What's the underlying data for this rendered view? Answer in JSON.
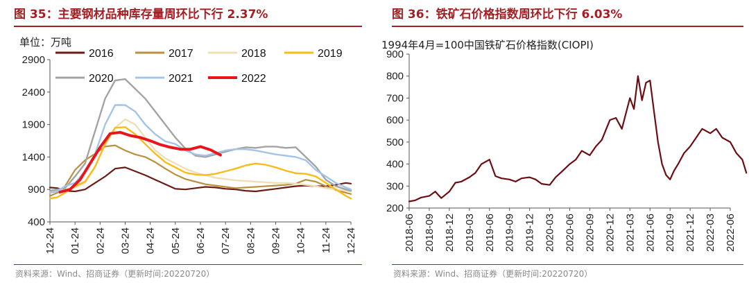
{
  "left": {
    "title": "图 35：主要钢材品种库存量周环比下行 2.37%",
    "source": "资料来源：Wind、招商证券（更新时间:20220720）",
    "chart_data": {
      "type": "line",
      "unit_label": "单位：万吨",
      "ylim": [
        400,
        2900
      ],
      "yticks": [
        400,
        900,
        1400,
        1900,
        2400,
        2900
      ],
      "x_ticks": [
        "12-24",
        "01-24",
        "02-24",
        "03-24",
        "04-24",
        "05-24",
        "06-24",
        "07-24",
        "08-24",
        "09-24",
        "10-24",
        "11-24",
        "12-24"
      ],
      "series": [
        {
          "name": "2016",
          "color": "#6b1a14",
          "width": 2.2,
          "x": [
            0,
            0.3,
            0.6,
            1,
            1.4,
            1.8,
            2.2,
            2.6,
            3,
            3.4,
            3.8,
            4.2,
            4.6,
            5,
            5.4,
            5.8,
            6.2,
            6.6,
            7,
            7.4,
            7.8,
            8.2,
            8.6,
            9,
            9.4,
            9.8,
            10.2,
            10.6,
            11,
            11.4,
            11.8,
            12
          ],
          "values": [
            930,
            920,
            880,
            870,
            900,
            1000,
            1100,
            1220,
            1240,
            1180,
            1120,
            1050,
            980,
            910,
            900,
            920,
            940,
            930,
            910,
            900,
            880,
            870,
            890,
            910,
            930,
            950,
            960,
            950,
            950,
            970,
            1000,
            990
          ]
        },
        {
          "name": "2017",
          "color": "#b8913e",
          "width": 2.2,
          "x": [
            0,
            0.3,
            0.6,
            1,
            1.4,
            1.8,
            2.2,
            2.6,
            3,
            3.4,
            3.8,
            4.2,
            4.6,
            5,
            5.4,
            5.8,
            6.2,
            6.6,
            7,
            7.4,
            7.8,
            8.2,
            8.6,
            9,
            9.4,
            9.8,
            10.2,
            10.6,
            11,
            11.4,
            11.8,
            12
          ],
          "values": [
            800,
            850,
            950,
            1200,
            1350,
            1450,
            1560,
            1580,
            1500,
            1440,
            1400,
            1320,
            1220,
            1130,
            1060,
            1020,
            980,
            960,
            940,
            920,
            930,
            940,
            950,
            960,
            970,
            990,
            1050,
            1020,
            950,
            890,
            850,
            830
          ]
        },
        {
          "name": "2018",
          "color": "#efdfb6",
          "width": 2.4,
          "x": [
            0,
            0.3,
            0.6,
            1,
            1.4,
            1.8,
            2.2,
            2.6,
            3,
            3.4,
            3.8,
            4.2,
            4.6,
            5,
            5.4,
            5.8,
            6.2,
            6.6,
            7,
            7.4,
            7.8,
            8.2,
            8.6,
            9,
            9.4,
            9.8,
            10.2,
            10.6,
            11,
            11.4,
            11.8,
            12
          ],
          "values": [
            860,
            880,
            900,
            930,
            1000,
            1250,
            1600,
            1850,
            1980,
            1900,
            1700,
            1500,
            1380,
            1300,
            1220,
            1160,
            1120,
            1080,
            1060,
            1040,
            1030,
            1020,
            1010,
            1000,
            1000,
            990,
            970,
            950,
            920,
            900,
            880,
            870
          ]
        },
        {
          "name": "2019",
          "color": "#f9bb17",
          "width": 2.4,
          "x": [
            0,
            0.3,
            0.6,
            1,
            1.4,
            1.8,
            2.2,
            2.6,
            3,
            3.4,
            3.8,
            4.2,
            4.6,
            5,
            5.4,
            5.8,
            6.2,
            6.6,
            7,
            7.4,
            7.8,
            8.2,
            8.6,
            9,
            9.4,
            9.8,
            10.2,
            10.6,
            11,
            11.4,
            11.8,
            12
          ],
          "values": [
            760,
            780,
            850,
            950,
            1020,
            1250,
            1600,
            1850,
            1860,
            1750,
            1600,
            1450,
            1320,
            1240,
            1160,
            1130,
            1120,
            1140,
            1180,
            1220,
            1270,
            1300,
            1280,
            1240,
            1190,
            1150,
            1140,
            1100,
            1000,
            900,
            800,
            760
          ]
        },
        {
          "name": "2020",
          "color": "#a3a3a3",
          "width": 2.4,
          "x": [
            0,
            0.3,
            0.6,
            1,
            1.4,
            1.8,
            2.2,
            2.6,
            3,
            3.4,
            3.8,
            4.2,
            4.6,
            5,
            5.4,
            5.8,
            6.2,
            6.6,
            7,
            7.4,
            7.8,
            8.2,
            8.6,
            9,
            9.4,
            9.8,
            10.2,
            10.6,
            11,
            11.4,
            11.8,
            12
          ],
          "values": [
            880,
            900,
            920,
            1100,
            1300,
            1800,
            2300,
            2580,
            2600,
            2450,
            2300,
            2100,
            1900,
            1700,
            1530,
            1420,
            1400,
            1440,
            1480,
            1520,
            1550,
            1540,
            1560,
            1560,
            1540,
            1550,
            1400,
            1250,
            1050,
            950,
            900,
            880
          ]
        },
        {
          "name": "2021",
          "color": "#a3c4e6",
          "width": 2.4,
          "x": [
            0,
            0.3,
            0.6,
            1,
            1.4,
            1.8,
            2.2,
            2.6,
            3,
            3.4,
            3.8,
            4.2,
            4.6,
            5,
            5.4,
            5.8,
            6.2,
            6.6,
            7,
            7.4,
            7.8,
            8.2,
            8.6,
            9,
            9.4,
            9.8,
            10.2,
            10.6,
            11,
            11.4,
            11.8,
            12
          ],
          "values": [
            850,
            870,
            950,
            1000,
            1180,
            1450,
            1900,
            2200,
            2200,
            2100,
            1900,
            1750,
            1640,
            1600,
            1500,
            1440,
            1420,
            1460,
            1500,
            1520,
            1520,
            1500,
            1470,
            1440,
            1420,
            1400,
            1350,
            1200,
            1100,
            1000,
            930,
            900
          ]
        },
        {
          "name": "2022",
          "color": "#e8161c",
          "width": 4,
          "x": [
            0.4,
            0.8,
            1.2,
            1.6,
            2,
            2.4,
            2.8,
            3.2,
            3.6,
            4,
            4.4,
            4.8,
            5.2,
            5.6,
            6,
            6.4,
            6.8
          ],
          "values": [
            860,
            900,
            1050,
            1300,
            1550,
            1760,
            1780,
            1730,
            1700,
            1650,
            1590,
            1550,
            1520,
            1520,
            1560,
            1510,
            1430
          ]
        }
      ]
    }
  },
  "right": {
    "title": "图 36：铁矿石价格指数周环比下行 6.03%",
    "source": "资料来源：Wind、招商证券（更新时间:20220720）",
    "chart_data": {
      "type": "line",
      "annotation": "1994年4月=100中国铁矿石价格指数(CIOPI)",
      "ylim": [
        200,
        900
      ],
      "yticks": [
        200,
        300,
        400,
        500,
        600,
        700,
        800,
        900
      ],
      "x_ticks": [
        "2018-06",
        "2018-09",
        "2018-12",
        "2019-03",
        "2019-06",
        "2019-09",
        "2019-12",
        "2020-03",
        "2020-06",
        "2020-09",
        "2020-12",
        "2021-03",
        "2021-06",
        "2021-09",
        "2021-12",
        "2022-03",
        "2022-06"
      ],
      "series": [
        {
          "name": "CIOPI",
          "color": "#6b0d12",
          "width": 2.2,
          "x": [
            0,
            0.3,
            0.6,
            1,
            1.3,
            1.6,
            2,
            2.3,
            2.6,
            3,
            3.3,
            3.6,
            4,
            4.3,
            4.6,
            5,
            5.3,
            5.6,
            6,
            6.3,
            6.6,
            7,
            7.3,
            7.6,
            8,
            8.3,
            8.6,
            9,
            9.3,
            9.6,
            10,
            10.3,
            10.6,
            11,
            11.2,
            11.4,
            11.6,
            11.8,
            12,
            12.2,
            12.4,
            12.6,
            12.8,
            13,
            13.2,
            13.4,
            13.7,
            14,
            14.3,
            14.6,
            15,
            15.3,
            15.6,
            16,
            16.3,
            16.6,
            16.8
          ],
          "values": [
            230,
            235,
            248,
            255,
            275,
            245,
            275,
            315,
            320,
            340,
            360,
            400,
            420,
            345,
            335,
            330,
            320,
            335,
            340,
            330,
            310,
            305,
            340,
            365,
            400,
            420,
            460,
            440,
            480,
            510,
            600,
            610,
            560,
            700,
            650,
            800,
            690,
            770,
            780,
            640,
            500,
            400,
            350,
            330,
            370,
            400,
            450,
            480,
            520,
            560,
            540,
            560,
            520,
            500,
            450,
            420,
            360
          ]
        }
      ]
    }
  }
}
